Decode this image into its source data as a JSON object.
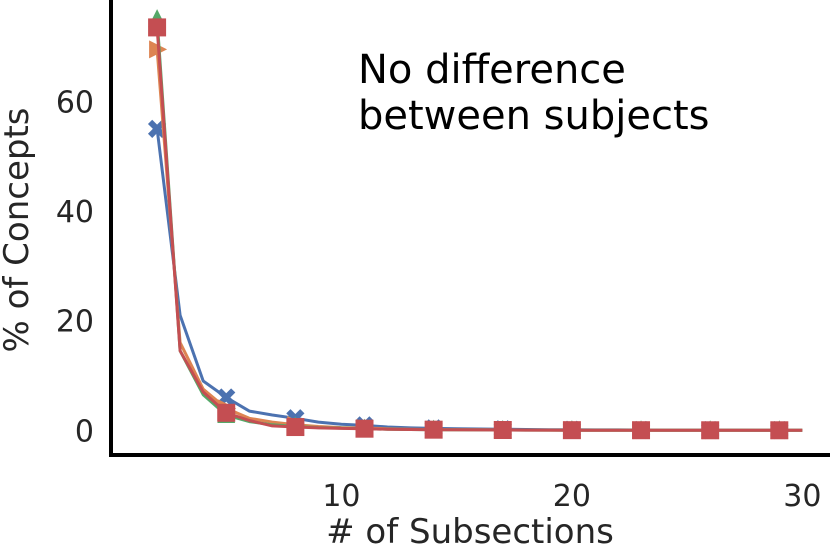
{
  "chart_data": {
    "type": "line",
    "xlabel": "# of Subsections",
    "ylabel": "% of Concepts",
    "xlim": [
      0,
      31.2
    ],
    "ylim": [
      -4.5,
      78.5
    ],
    "xticks": [
      10,
      20,
      30
    ],
    "yticks": [
      0,
      20,
      40,
      60
    ],
    "xtick_labels": [
      "10",
      "20",
      "30"
    ],
    "ytick_labels": [
      "0",
      "20",
      "40",
      "60"
    ],
    "annotation": [
      "No difference",
      "between subjects"
    ],
    "grid": false,
    "series": [
      {
        "color": "#4c72b0",
        "marker": "x",
        "x": [
          2,
          3,
          4,
          5,
          6,
          7,
          8,
          9,
          10,
          11,
          12,
          13,
          14,
          15,
          16,
          17,
          18,
          19,
          20,
          21,
          22,
          23,
          24,
          25,
          26,
          27,
          28,
          29,
          30
        ],
        "y": [
          55,
          21,
          9,
          6,
          3.5,
          2.8,
          2.2,
          1.5,
          1.1,
          0.9,
          0.6,
          0.45,
          0.35,
          0.3,
          0.25,
          0.2,
          0.15,
          0.12,
          0.1,
          0.08,
          0.07,
          0.06,
          0.05,
          0.05,
          0.04,
          0.04,
          0.03,
          0.03,
          0.02
        ],
        "marker_x": [
          2,
          5,
          8,
          11,
          14,
          17,
          20,
          23,
          26,
          29
        ]
      },
      {
        "color": "#dd8452",
        "marker": "triangle-right",
        "x": [
          2,
          3,
          4,
          5,
          6,
          7,
          8,
          9,
          10,
          11,
          12,
          13,
          14,
          15,
          16,
          17,
          18,
          19,
          20,
          21,
          22,
          23,
          24,
          25,
          26,
          27,
          28,
          29,
          30
        ],
        "y": [
          69.5,
          16,
          7.5,
          4,
          2.2,
          1.5,
          1,
          0.7,
          0.5,
          0.4,
          0.3,
          0.2,
          0.15,
          0.12,
          0.1,
          0.08,
          0.06,
          0.05,
          0.04,
          0.03,
          0.03,
          0.02,
          0.02,
          0.02,
          0.01,
          0.01,
          0.01,
          0.01,
          0.01
        ],
        "marker_x": [
          2,
          5,
          8,
          11,
          14,
          17,
          20,
          23,
          26,
          29
        ]
      },
      {
        "color": "#55a868",
        "marker": "triangle-up",
        "x": [
          2,
          3,
          4,
          5,
          6,
          7,
          8,
          9,
          10,
          11,
          12,
          13,
          14,
          15,
          16,
          17,
          18,
          19,
          20,
          21,
          22,
          23,
          24,
          25,
          26,
          27,
          28,
          29,
          30
        ],
        "y": [
          75,
          14.5,
          6.5,
          2.8,
          1.6,
          1,
          0.7,
          0.5,
          0.4,
          0.3,
          0.2,
          0.15,
          0.12,
          0.1,
          0.08,
          0.06,
          0.05,
          0.04,
          0.03,
          0.03,
          0.02,
          0.02,
          0.02,
          0.01,
          0.01,
          0.01,
          0.01,
          0.01,
          0.01
        ],
        "marker_x": [
          2,
          5,
          8,
          11,
          14,
          17,
          20,
          23,
          26,
          29
        ]
      },
      {
        "color": "#c44e52",
        "marker": "square",
        "x": [
          2,
          3,
          4,
          5,
          6,
          7,
          8,
          9,
          10,
          11,
          12,
          13,
          14,
          15,
          16,
          17,
          18,
          19,
          20,
          21,
          22,
          23,
          24,
          25,
          26,
          27,
          28,
          29,
          30
        ],
        "y": [
          73.5,
          14.5,
          7,
          3.2,
          1.8,
          0.8,
          0.6,
          0.45,
          0.35,
          0.3,
          0.2,
          0.15,
          0.12,
          0.1,
          0.08,
          0.06,
          0.05,
          0.04,
          0.03,
          0.03,
          0.02,
          0.02,
          0.02,
          0.01,
          0.01,
          0.01,
          0.01,
          0.01,
          0.01
        ],
        "marker_x": [
          2,
          5,
          8,
          11,
          14,
          17,
          20,
          23,
          26,
          29
        ]
      }
    ]
  }
}
